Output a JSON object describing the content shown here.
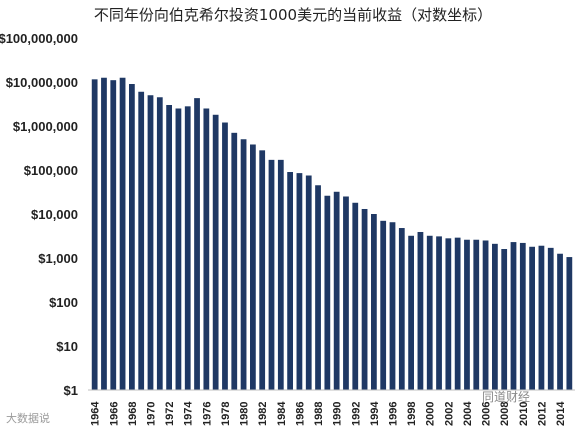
{
  "watermarks": {
    "left": "大数据说",
    "right": "同道财经"
  },
  "chart_data": {
    "type": "bar",
    "title": "不同年份向伯克希尔投资1000美元的当前收益（对数坐标）",
    "xlabel": "",
    "ylabel": "",
    "y_scale": "log",
    "ylim": [
      1,
      100000000
    ],
    "y_tick_labels": [
      "$1",
      "$10",
      "$100",
      "$1,000",
      "$10,000",
      "$100,000",
      "$1,000,000",
      "$10,000,000",
      "$100,000,000"
    ],
    "x_tick_labels": [
      "1964",
      "1966",
      "1968",
      "1970",
      "1972",
      "1974",
      "1976",
      "1978",
      "1980",
      "1982",
      "1984",
      "1986",
      "1988",
      "1990",
      "1992",
      "1994",
      "1996",
      "1998",
      "2000",
      "2002",
      "2004",
      "2006",
      "2008",
      "2010",
      "2012",
      "2014"
    ],
    "bar_color": "#1f3864",
    "grid": false,
    "categories": [
      1964,
      1965,
      1966,
      1967,
      1968,
      1969,
      1970,
      1971,
      1972,
      1973,
      1974,
      1975,
      1976,
      1977,
      1978,
      1979,
      1980,
      1981,
      1982,
      1983,
      1984,
      1985,
      1986,
      1987,
      1988,
      1989,
      1990,
      1991,
      1992,
      1993,
      1994,
      1995,
      1996,
      1997,
      1998,
      1999,
      2000,
      2001,
      2002,
      2003,
      2004,
      2005,
      2006,
      2007,
      2008,
      2009,
      2010,
      2011,
      2012,
      2013,
      2014,
      2015
    ],
    "values": [
      11500000,
      12500000,
      11000000,
      12500000,
      9000000,
      6000000,
      5000000,
      4500000,
      3000000,
      2500000,
      2800000,
      4300000,
      2500000,
      1800000,
      1200000,
      700000,
      500000,
      380000,
      280000,
      170000,
      170000,
      90000,
      85000,
      75000,
      45000,
      26000,
      32000,
      25000,
      18000,
      13000,
      10000,
      7000,
      6500,
      4800,
      3200,
      3900,
      3200,
      3100,
      2800,
      2900,
      2600,
      2600,
      2500,
      2100,
      1600,
      2300,
      2200,
      1800,
      1900,
      1700,
      1250,
      1050
    ]
  }
}
